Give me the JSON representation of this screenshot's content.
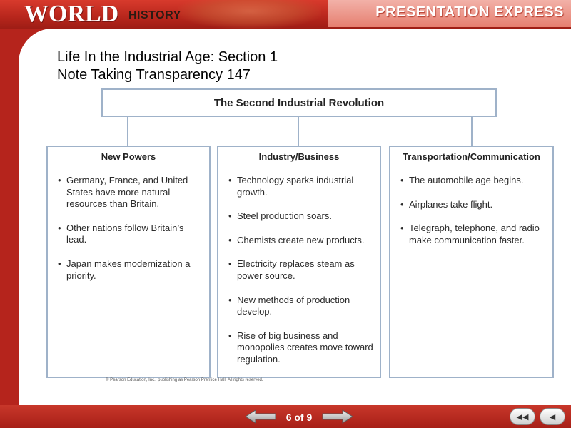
{
  "header": {
    "brand_world": "WORLD",
    "brand_history": "HISTORY",
    "product": "PRESENTATION EXPRESS"
  },
  "slide": {
    "title_line1": "Life In the Industrial Age: Section 1",
    "title_line2": "Note Taking Transparency 147"
  },
  "diagram": {
    "top": "The Second Industrial Revolution",
    "columns": [
      {
        "heading": "New Powers",
        "items": [
          "Germany, France, and United States have more natural resources than Britain.",
          "Other nations follow Britain’s lead.",
          "Japan makes modernization a priority."
        ]
      },
      {
        "heading": "Industry/Business",
        "items": [
          "Technology sparks industrial growth.",
          "Steel production soars.",
          "Chemists create new products.",
          "Electricity replaces steam as power source.",
          "New methods of production develop.",
          "Rise of big business and monopolies creates move toward regulation."
        ]
      },
      {
        "heading": "Transportation/Communication",
        "items": [
          "The automobile age begins.",
          "Airplanes take flight.",
          "Telegraph, telephone, and radio make communication faster."
        ]
      }
    ],
    "copyright": "© Pearson Education, Inc., publishing as Pearson Prentice Hall. All rights reserved."
  },
  "footer": {
    "page_indicator": "6 of 9"
  },
  "icons": {
    "prev": "left-arrow-icon",
    "next": "right-arrow-icon",
    "first": "rewind-icon",
    "back": "back-icon"
  },
  "colors": {
    "brand_red": "#b5241c",
    "box_border": "#9fb2c9"
  }
}
